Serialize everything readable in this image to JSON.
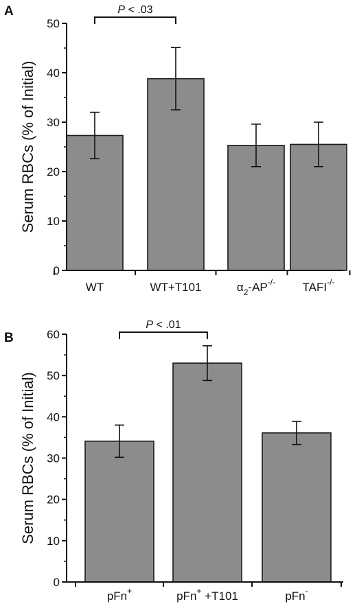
{
  "chart_data": [
    {
      "panel": "A",
      "type": "bar",
      "ylabel": "Serum RBCs (% of Initial)",
      "ylim": [
        0,
        50
      ],
      "yticks": [
        0,
        10,
        20,
        30,
        40,
        50
      ],
      "categories": [
        {
          "base": "WT",
          "sub": "",
          "sup": "",
          "tail": ""
        },
        {
          "base": "WT+T101",
          "sub": "",
          "sup": "",
          "tail": ""
        },
        {
          "base": "α",
          "sub": "2",
          "sup": "-/-",
          "tail": "-AP"
        },
        {
          "base": "TAFI",
          "sub": "",
          "sup": "-/-",
          "tail": ""
        }
      ],
      "values": [
        27.3,
        38.8,
        25.3,
        25.5
      ],
      "errors": [
        4.7,
        6.3,
        4.3,
        4.5
      ],
      "bar_color": "#8c8c8c",
      "significance": {
        "from": 0,
        "to": 1,
        "italic": "P",
        "rest": " < .03"
      }
    },
    {
      "panel": "B",
      "type": "bar",
      "ylabel": "Serum RBCs (% of Initial)",
      "ylim": [
        0,
        60
      ],
      "yticks": [
        0,
        10,
        20,
        30,
        40,
        50,
        60
      ],
      "categories": [
        {
          "base": "pFn",
          "sub": "",
          "sup": "+",
          "tail": ""
        },
        {
          "base": "pFn",
          "sub": "",
          "sup": "+",
          "tail": " +T101"
        },
        {
          "base": "pFn",
          "sub": "",
          "sup": "-",
          "tail": ""
        }
      ],
      "values": [
        34.1,
        53.0,
        36.1
      ],
      "errors": [
        3.9,
        4.2,
        2.8
      ],
      "bar_color": "#8c8c8c",
      "significance": {
        "from": 0,
        "to": 1,
        "italic": "P",
        "rest": " < .01"
      }
    }
  ]
}
